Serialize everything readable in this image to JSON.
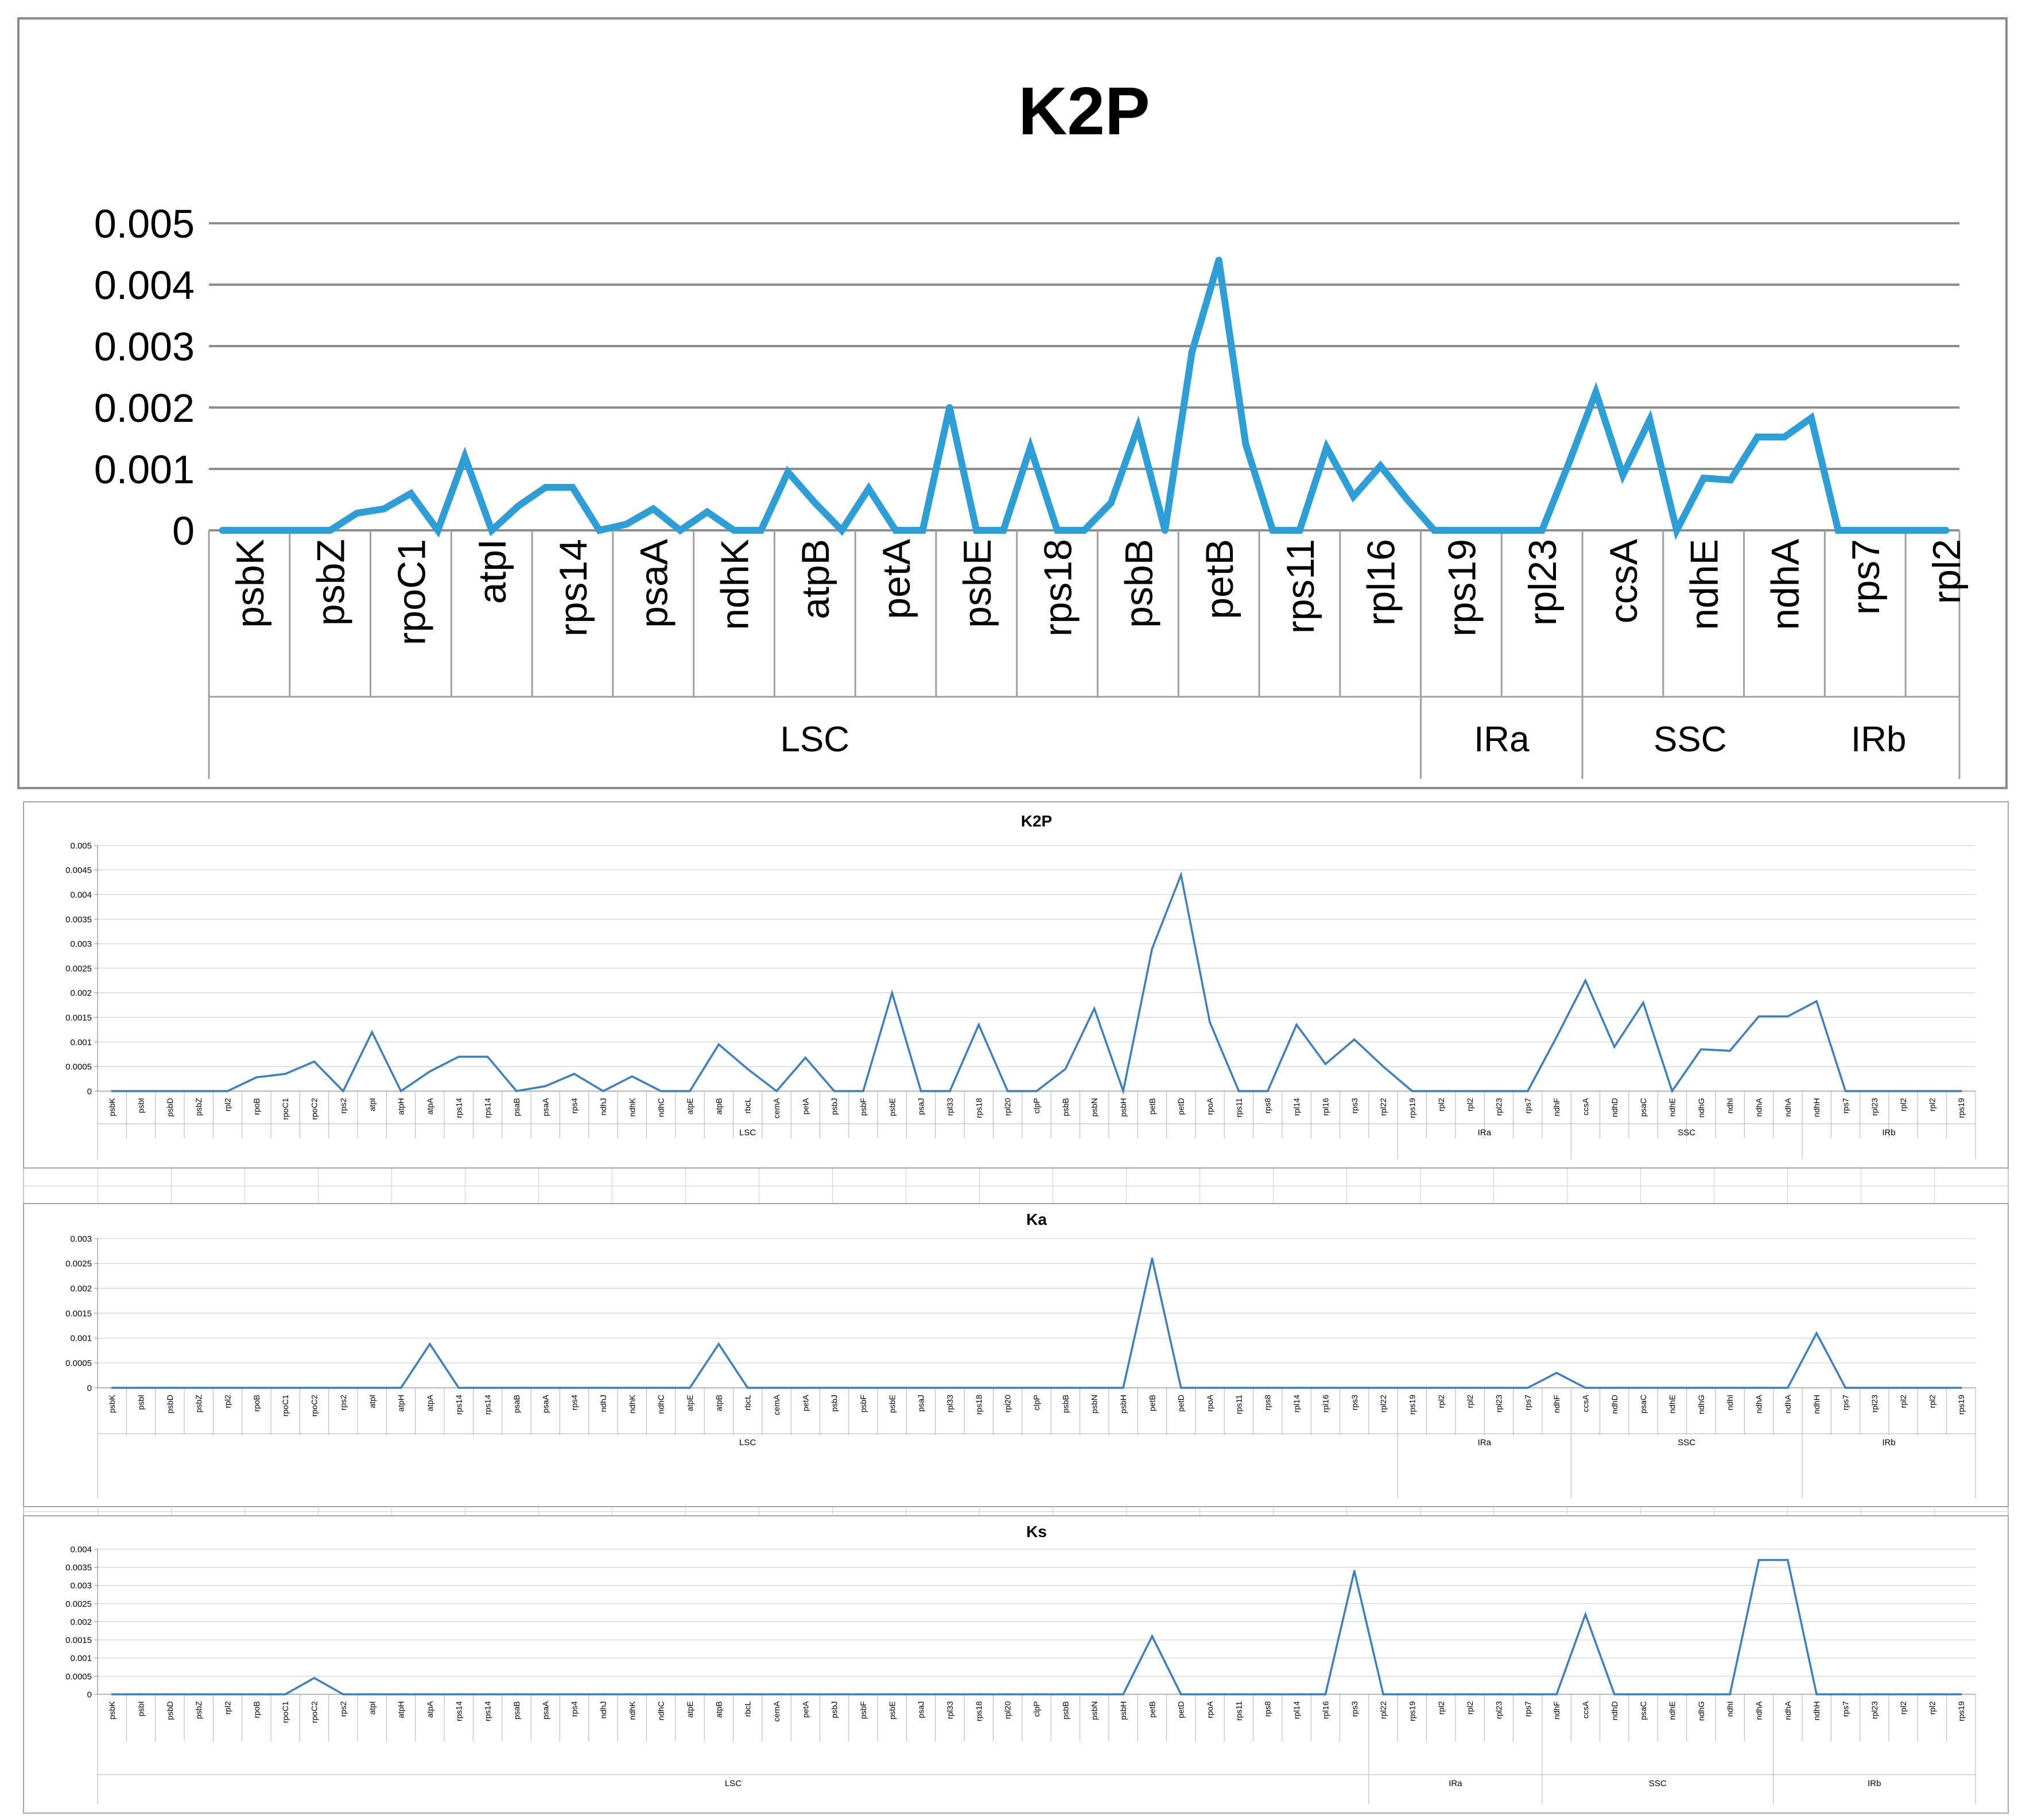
{
  "chart_data": [
    {
      "type": "line",
      "title": "K2P",
      "color": "#2e9fd6",
      "ylim": [
        0,
        0.005
      ],
      "yticks": [
        "0",
        "0.001",
        "0.002",
        "0.003",
        "0.004",
        "0.005"
      ],
      "grid": true,
      "tick_every": 3,
      "categories": [
        "psbK",
        "psbI",
        "psbD",
        "psbZ",
        "rpl2",
        "rpoB",
        "rpoC1",
        "rpoC2",
        "rps2",
        "atpI",
        "atpH",
        "atpA",
        "rps14",
        "rps14",
        "psaB",
        "psaA",
        "rps4",
        "ndhJ",
        "ndhK",
        "ndhC",
        "atpE",
        "atpB",
        "rbcL",
        "cemA",
        "petA",
        "psbJ",
        "psbF",
        "psbE",
        "psaJ",
        "rpl33",
        "rps18",
        "rpl20",
        "clpP",
        "psbB",
        "psbN",
        "psbH",
        "petB",
        "petD",
        "rpoA",
        "rps11",
        "rps8",
        "rpl14",
        "rpl16",
        "rps3",
        "rpl22",
        "rps19",
        "rpl2",
        "rpl2",
        "rpl23",
        "rps7",
        "ndhF",
        "ccsA",
        "ndhD",
        "psaC",
        "ndhE",
        "ndhG",
        "ndhI",
        "ndhA",
        "ndhA",
        "ndhH",
        "rps7",
        "rpl23",
        "rpl2",
        "rpl2",
        "rps19"
      ],
      "values": [
        0,
        0,
        0,
        0,
        0,
        0.00028,
        0.00035,
        0.0006,
        0,
        0.0012,
        0,
        0.0004,
        0.0007,
        0.0007,
        0,
        0.0001,
        0.00035,
        0,
        0.0003,
        0,
        0,
        0.00095,
        0.00045,
        0,
        0.00068,
        0,
        0,
        0.002,
        0,
        0,
        0.00135,
        0,
        0,
        0.00045,
        0.00168,
        0,
        0.0029,
        0.0044,
        0.0014,
        0,
        0,
        0.00135,
        0.00055,
        0.00105,
        0.0005,
        0,
        0,
        0,
        0,
        0,
        0.0011,
        0.00225,
        0.0009,
        0.0018,
        0,
        0.00085,
        0.00082,
        0.00152,
        0.00152,
        0.00183,
        0,
        0,
        0,
        0,
        0
      ],
      "regions": [
        {
          "label": "LSC",
          "start": 0,
          "end": 44
        },
        {
          "label": "IRa",
          "start": 45,
          "end": 50
        },
        {
          "label": "SSC",
          "start": 51,
          "end": 58
        },
        {
          "label": "IRb",
          "start": 59,
          "end": 64
        }
      ]
    },
    {
      "type": "line",
      "title": "K2P",
      "color": "#3a7fc1",
      "ylim": [
        0,
        0.005
      ],
      "yticks": [
        "0",
        "0.0005",
        "0.001",
        "0.0015",
        "0.002",
        "0.0025",
        "0.003",
        "0.0035",
        "0.004",
        "0.0045",
        "0.005"
      ],
      "grid": true,
      "tick_every": 1,
      "categories": [
        "psbK",
        "psbI",
        "psbD",
        "psbZ",
        "rpl2",
        "rpoB",
        "rpoC1",
        "rpoC2",
        "rps2",
        "atpI",
        "atpH",
        "atpA",
        "rps14",
        "rps14",
        "psaB",
        "psaA",
        "rps4",
        "ndhJ",
        "ndhK",
        "ndhC",
        "atpE",
        "atpB",
        "rbcL",
        "cemA",
        "petA",
        "psbJ",
        "psbF",
        "psbE",
        "psaJ",
        "rpl33",
        "rps18",
        "rpl20",
        "clpP",
        "psbB",
        "psbN",
        "psbH",
        "petB",
        "petD",
        "rpoA",
        "rps11",
        "rps8",
        "rpl14",
        "rpl16",
        "rps3",
        "rpl22",
        "rps19",
        "rpl2",
        "rpl2",
        "rpl23",
        "rps7",
        "ndhF",
        "ccsA",
        "ndhD",
        "psaC",
        "ndhE",
        "ndhG",
        "ndhI",
        "ndhA",
        "ndhA",
        "ndhH",
        "rps7",
        "rpl23",
        "rpl2",
        "rpl2",
        "rps19"
      ],
      "values": [
        0,
        0,
        0,
        0,
        0,
        0.00028,
        0.00035,
        0.0006,
        0,
        0.0012,
        0,
        0.0004,
        0.0007,
        0.0007,
        0,
        0.0001,
        0.00035,
        0,
        0.0003,
        0,
        0,
        0.00095,
        0.00045,
        0,
        0.00068,
        0,
        0,
        0.002,
        0,
        0,
        0.00135,
        0,
        0,
        0.00045,
        0.00168,
        0,
        0.0029,
        0.0044,
        0.0014,
        0,
        0,
        0.00135,
        0.00055,
        0.00105,
        0.0005,
        0,
        0,
        0,
        0,
        0,
        0.0011,
        0.00225,
        0.0009,
        0.0018,
        0,
        0.00085,
        0.00082,
        0.00152,
        0.00152,
        0.00183,
        0,
        0,
        0,
        0,
        0
      ],
      "regions": [
        {
          "label": "LSC",
          "start": 0,
          "end": 44
        },
        {
          "label": "IRa",
          "start": 45,
          "end": 50
        },
        {
          "label": "SSC",
          "start": 51,
          "end": 58
        },
        {
          "label": "IRb",
          "start": 59,
          "end": 64
        }
      ]
    },
    {
      "type": "line",
      "title": "Ka",
      "color": "#3a7fc1",
      "ylim": [
        0,
        0.003
      ],
      "yticks": [
        "0",
        "0.0005",
        "0.001",
        "0.0015",
        "0.002",
        "0.0025",
        "0.003"
      ],
      "grid": true,
      "tick_every": 1,
      "categories": [
        "psbK",
        "psbI",
        "psbD",
        "psbZ",
        "rpl2",
        "rpoB",
        "rpoC1",
        "rpoC2",
        "rps2",
        "atpI",
        "atpH",
        "atpA",
        "rps14",
        "rps14",
        "psaB",
        "psaA",
        "rps4",
        "ndhJ",
        "ndhK",
        "ndhC",
        "atpE",
        "atpB",
        "rbcL",
        "cemA",
        "petA",
        "psbJ",
        "psbF",
        "psbE",
        "psaJ",
        "rpl33",
        "rps18",
        "rpl20",
        "clpP",
        "psbB",
        "psbN",
        "psbH",
        "petB",
        "petD",
        "rpoA",
        "rps11",
        "rps8",
        "rpl14",
        "rpl16",
        "rps3",
        "rpl22",
        "rps19",
        "rpl2",
        "rpl2",
        "rpl23",
        "rps7",
        "ndhF",
        "ccsA",
        "ndhD",
        "psaC",
        "ndhE",
        "ndhG",
        "ndhI",
        "ndhA",
        "ndhA",
        "ndhH",
        "rps7",
        "rpl23",
        "rpl2",
        "rpl2",
        "rps19"
      ],
      "values": [
        0,
        0,
        0,
        0,
        0,
        0,
        0,
        0,
        0,
        0,
        0,
        0.00088,
        0,
        0,
        0,
        0,
        0,
        0,
        0,
        0,
        0,
        0.00088,
        0,
        0,
        0,
        0,
        0,
        0,
        0,
        0,
        0,
        0,
        0,
        0,
        0,
        0,
        0.0026,
        0,
        0,
        0,
        0,
        0,
        0,
        0,
        0,
        0,
        0,
        0,
        0,
        0,
        0.0003,
        0,
        0,
        0,
        0,
        0,
        0,
        0,
        0,
        0.0011,
        0,
        0,
        0,
        0,
        0
      ],
      "regions": [
        {
          "label": "LSC",
          "start": 0,
          "end": 44
        },
        {
          "label": "IRa",
          "start": 45,
          "end": 50
        },
        {
          "label": "SSC",
          "start": 51,
          "end": 58
        },
        {
          "label": "IRb",
          "start": 59,
          "end": 64
        }
      ]
    },
    {
      "type": "line",
      "title": "Ks",
      "color": "#3a7fc1",
      "ylim": [
        0,
        0.004
      ],
      "yticks": [
        "0",
        "0.0005",
        "0.001",
        "0.0015",
        "0.002",
        "0.0025",
        "0.003",
        "0.0035",
        "0.004"
      ],
      "grid": true,
      "tick_every": 1,
      "categories": [
        "psbK",
        "psbI",
        "psbD",
        "psbZ",
        "rpl2",
        "rpoB",
        "rpoC1",
        "rpoC2",
        "rps2",
        "atpI",
        "atpH",
        "atpA",
        "rps14",
        "rps14",
        "psaB",
        "psaA",
        "rps4",
        "ndhJ",
        "ndhK",
        "ndhC",
        "atpE",
        "atpB",
        "rbcL",
        "cemA",
        "petA",
        "psbJ",
        "psbF",
        "psbE",
        "psaJ",
        "rpl33",
        "rps18",
        "rpl20",
        "clpP",
        "psbB",
        "psbN",
        "psbH",
        "petB",
        "petD",
        "rpoA",
        "rps11",
        "rps8",
        "rpl14",
        "rpl16",
        "rps3",
        "rpl22",
        "rps19",
        "rpl2",
        "rpl2",
        "rpl23",
        "rps7",
        "ndhF",
        "ccsA",
        "ndhD",
        "psaC",
        "ndhE",
        "ndhG",
        "ndhI",
        "ndhA",
        "ndhA",
        "ndhH",
        "rps7",
        "rpl23",
        "rpl2",
        "rpl2",
        "rps19"
      ],
      "values": [
        0,
        0,
        0,
        0,
        0,
        0,
        0,
        0.00045,
        0,
        0,
        0,
        0,
        0,
        0,
        0,
        0,
        0,
        0,
        0,
        0,
        0,
        0,
        0,
        0,
        0,
        0,
        0,
        0,
        0,
        0,
        0,
        0,
        0,
        0,
        0,
        0,
        0.0016,
        0,
        0,
        0,
        0,
        0,
        0,
        0.0034,
        0,
        0,
        0,
        0,
        0,
        0,
        0,
        0.0022,
        0,
        0,
        0,
        0,
        0,
        0.0037,
        0.0037,
        0,
        0,
        0,
        0,
        0,
        0
      ],
      "regions": [
        {
          "label": "LSC",
          "start": 0,
          "end": 43
        },
        {
          "label": "IRa",
          "start": 44,
          "end": 49
        },
        {
          "label": "SSC",
          "start": 50,
          "end": 57
        },
        {
          "label": "IRb",
          "start": 58,
          "end": 64
        }
      ],
      "categories_override": [
        "psbK",
        "psbI",
        "psbD",
        "psbZ",
        "rpl2",
        "rpoB",
        "rpoC1",
        "rpoC2",
        "rps2",
        "atpI",
        "atpH",
        "atpA",
        "rps14",
        "rps14",
        "psaB",
        "psaA",
        "rps4",
        "ndhJ",
        "ndhK",
        "ndhC",
        "atpE",
        "atpB",
        "rbcL",
        "cemA",
        "petA",
        "psbJ",
        "psbF",
        "psbE",
        "psaJ",
        "rpl33",
        "rps18",
        "rpl20",
        "clpP",
        "psbB",
        "psbN",
        "psbH",
        "petB",
        "petD",
        "rpoA",
        "rps11",
        "rps8",
        "rpl14",
        "rpl16",
        "rps3",
        "rpl22",
        "rps19",
        "rpl2",
        "rpl2",
        "rpl23",
        "rps7",
        "ndhF",
        "ccsA",
        "ndhD",
        "psaC",
        "ndhE",
        "ndhG",
        "ndhI",
        "ndhA",
        "ndhA",
        "ndhH",
        "rps7",
        "rpl23",
        "rpl2",
        "rpl2",
        "rps19"
      ]
    }
  ]
}
